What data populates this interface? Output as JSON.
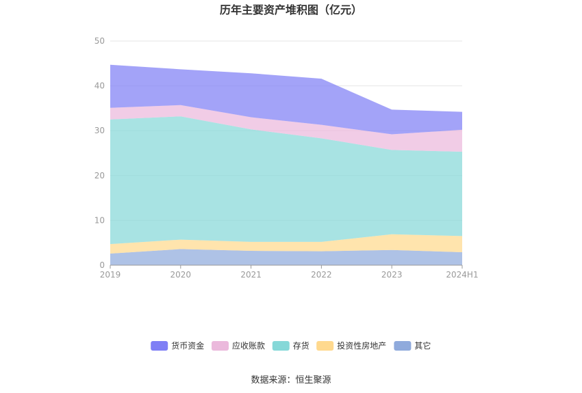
{
  "chart_data": {
    "type": "area",
    "stacked": true,
    "title": "历年主要资产堆积图（亿元）",
    "source": "数据来源：恒生聚源",
    "x": [
      "2019",
      "2020",
      "2021",
      "2022",
      "2023",
      "2024H1"
    ],
    "ylim": [
      0,
      50
    ],
    "yticks": [
      0,
      10,
      20,
      30,
      40,
      50
    ],
    "grid": true,
    "legend_position": "bottom",
    "series": [
      {
        "name": "其它",
        "color": "#8faadc",
        "values": [
          2.6,
          3.6,
          3.2,
          3.1,
          3.4,
          2.9
        ]
      },
      {
        "name": "投资性房地产",
        "color": "#ffd98e",
        "values": [
          2.1,
          2.1,
          2.0,
          2.1,
          3.5,
          3.6
        ]
      },
      {
        "name": "存货",
        "color": "#86d8d8",
        "values": [
          27.8,
          27.5,
          25.1,
          23.1,
          18.8,
          18.8
        ]
      },
      {
        "name": "应收账款",
        "color": "#ebb9dc",
        "values": [
          2.6,
          2.5,
          2.7,
          3.0,
          3.5,
          4.9
        ]
      },
      {
        "name": "货币资金",
        "color": "#7f7ff5",
        "values": [
          9.6,
          8.0,
          9.8,
          10.3,
          5.5,
          4.0
        ]
      }
    ],
    "legend_order": [
      "货币资金",
      "应收账款",
      "存货",
      "投资性房地产",
      "其它"
    ]
  }
}
